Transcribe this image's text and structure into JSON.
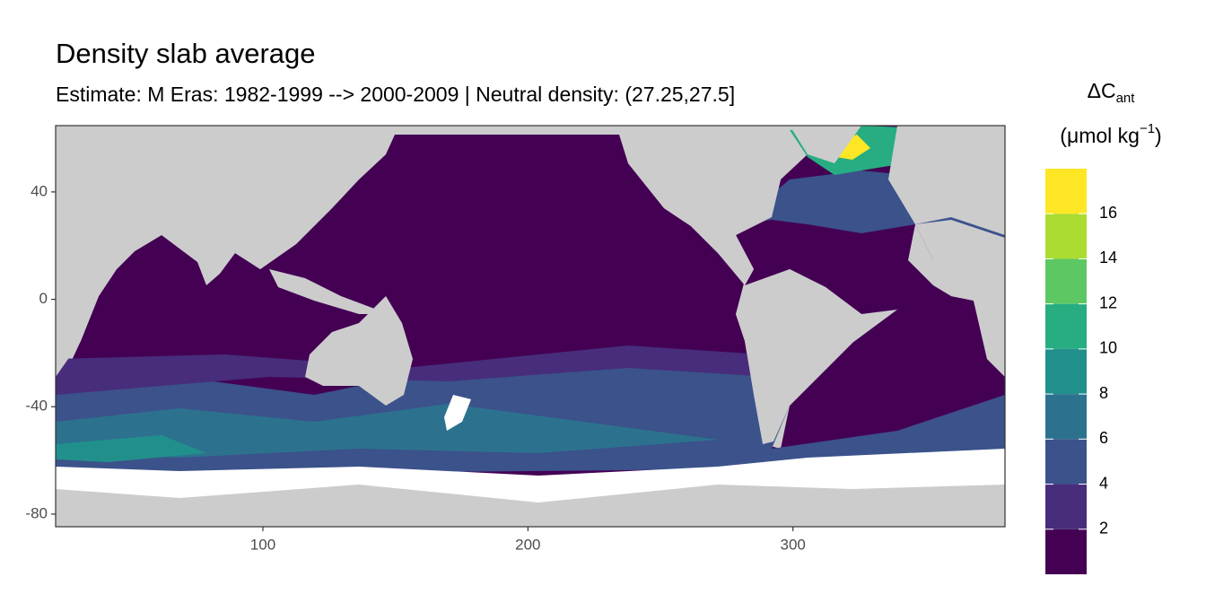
{
  "chart_data": {
    "type": "raster-map",
    "title": "Density slab average",
    "subtitle": "Estimate: M Eras: 1982-1999 --> 2000-2009 | Neutral density: (27.25,27.5]",
    "xlim": [
      21.8,
      380
    ],
    "ylim": [
      -84.7,
      64.7
    ],
    "xticks": [
      100,
      200,
      300
    ],
    "yticks": [
      40,
      0,
      -40,
      -80
    ],
    "legend": {
      "title": "ΔC",
      "title_subscript": "ant",
      "unit": "(μmol kg",
      "unit_superscript": "−1",
      "unit_end": ")",
      "limits": [
        0,
        18
      ],
      "ticks": [
        2,
        4,
        6,
        8,
        10,
        12,
        14,
        16
      ],
      "colors": [
        "#440154",
        "#472d7b",
        "#3b528b",
        "#2c728e",
        "#21908c",
        "#27ad81",
        "#5dc863",
        "#aadc32",
        "#fde725"
      ]
    }
  }
}
